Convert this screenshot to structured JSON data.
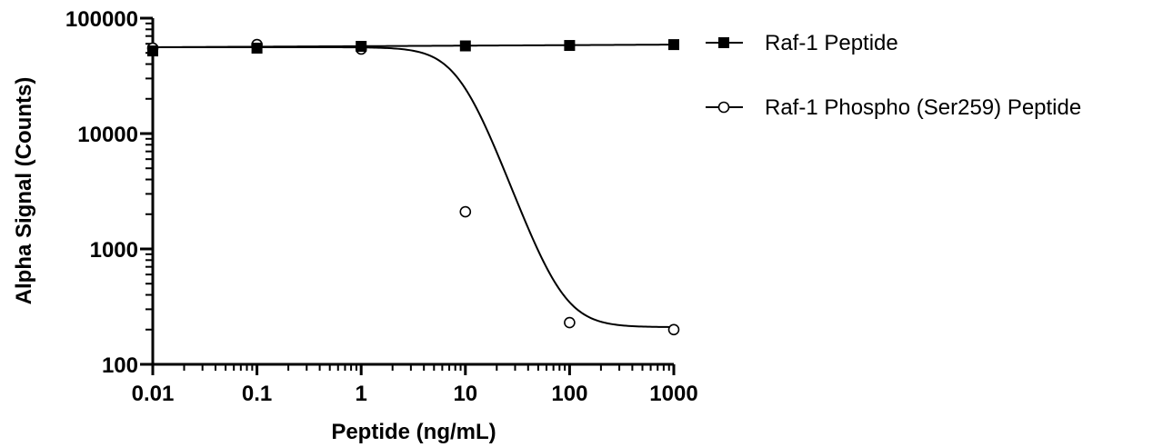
{
  "chart_data": {
    "type": "scatter",
    "xlabel": "Peptide (ng/mL)",
    "ylabel": "Alpha Signal (Counts)",
    "x_scale": "log",
    "y_scale": "log",
    "xlim": [
      0.01,
      1000
    ],
    "ylim": [
      100,
      100000
    ],
    "x_ticks": [
      "0.01",
      "0.1",
      "1",
      "10",
      "100",
      "1000"
    ],
    "y_ticks": [
      "100",
      "1000",
      "10000",
      "100000"
    ],
    "grid": false,
    "legend_position": "right",
    "series": [
      {
        "name": "Raf-1 Peptide",
        "marker": "filled-square",
        "color": "#000000",
        "x": [
          0.01,
          0.1,
          1,
          10,
          100,
          1000
        ],
        "y": [
          52000,
          55000,
          57000,
          57500,
          58000,
          59000
        ],
        "fit": {
          "type": "flat",
          "bottom": 56000,
          "top": 59000
        }
      },
      {
        "name": "Raf-1 Phospho (Ser259) Peptide",
        "marker": "open-circle",
        "color": "#000000",
        "x": [
          0.01,
          0.1,
          1,
          10,
          100,
          1000
        ],
        "y": [
          55000,
          59000,
          54000,
          2100,
          230,
          200
        ],
        "fit": {
          "type": "sigmoid",
          "top": 56000,
          "bottom": 210,
          "ec50": 9,
          "hill": 2.5
        }
      }
    ]
  }
}
